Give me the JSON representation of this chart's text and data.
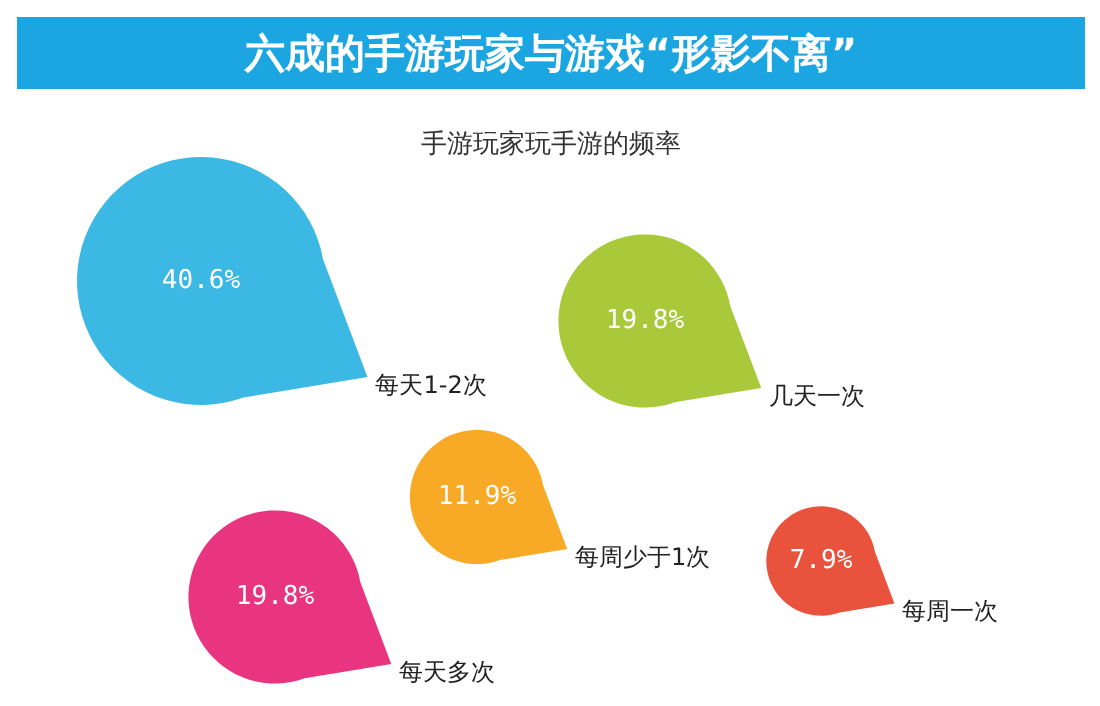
{
  "chart_data": {
    "type": "other",
    "title": "六成的手游玩家与游戏“形影不离”",
    "subtitle": "手游玩家玩手游的频率",
    "categories": [
      "每天1-2次",
      "几天一次",
      "每周少于1次",
      "每天多次",
      "每周一次"
    ],
    "values": [
      40.6,
      19.8,
      11.9,
      19.8,
      7.9
    ],
    "value_labels": [
      "40.6%",
      "19.8%",
      "11.9%",
      "19.8%",
      "7.9%"
    ],
    "colors": [
      "#3bb8e3",
      "#a9c93b",
      "#f8aa26",
      "#e9357f",
      "#e9533e"
    ]
  }
}
